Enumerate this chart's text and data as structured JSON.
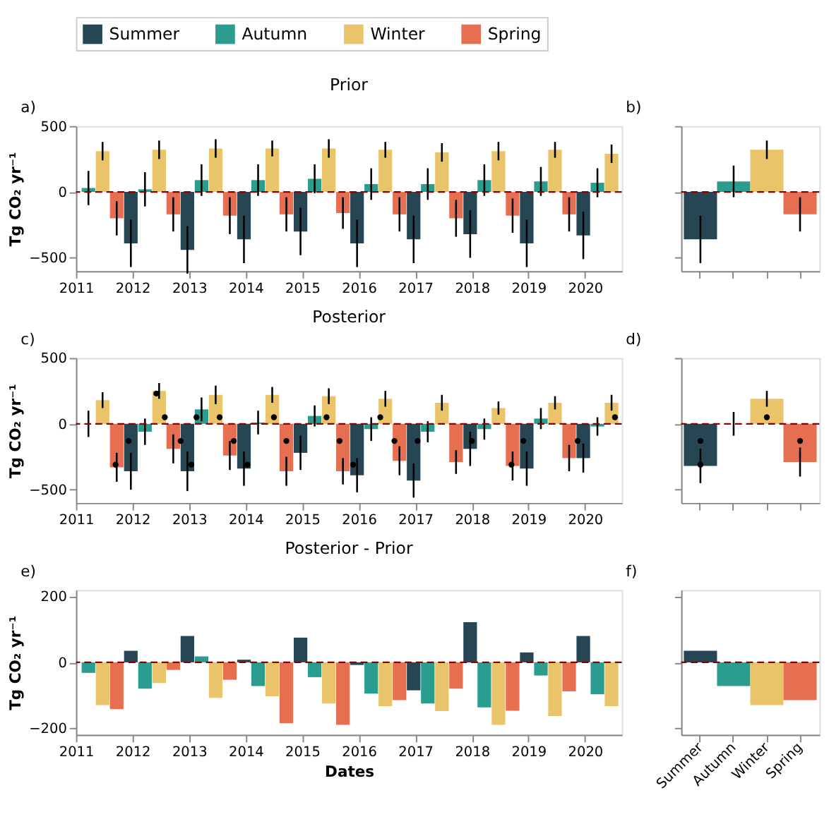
{
  "chart_data": [
    {
      "type": "bar",
      "title": "Prior",
      "ylabel": "Tg CO₂ yr⁻¹",
      "annotations": [
        "a)"
      ],
      "legend": "top",
      "xlim": [
        2011,
        2020.65
      ],
      "xticks": [
        2011,
        2012,
        2013,
        2014,
        2015,
        2016,
        2017,
        2018,
        2019,
        2020
      ],
      "ylim": [
        -600,
        500
      ],
      "yticks": [
        -500,
        0,
        500
      ],
      "ref_lines": [
        {
          "axis": "y",
          "value": 0,
          "color": "#8b0000",
          "line_style": "dashed"
        }
      ],
      "series": [
        {
          "name": "Summer",
          "color": "#264653",
          "x": [
            2011.97,
            2012.97,
            2013.97,
            2014.97,
            2015.97,
            2016.97,
            2017.97,
            2018.97,
            2019.97
          ],
          "values": [
            -390,
            -440,
            -360,
            -300,
            -390,
            -360,
            -320,
            -390,
            -330
          ],
          "errors": [
            180,
            180,
            180,
            180,
            180,
            180,
            180,
            180,
            180
          ]
        },
        {
          "name": "Autumn",
          "color": "#2a9d8f",
          "x": [
            2011.22,
            2012.22,
            2013.22,
            2014.22,
            2015.22,
            2016.22,
            2017.22,
            2018.22,
            2019.22,
            2020.22
          ],
          "values": [
            30,
            20,
            90,
            90,
            100,
            60,
            60,
            90,
            80,
            70
          ],
          "errors": [
            130,
            130,
            120,
            120,
            110,
            120,
            120,
            120,
            110,
            110
          ]
        },
        {
          "name": "Winter",
          "color": "#e9c46a",
          "x": [
            2011.47,
            2012.47,
            2013.47,
            2014.47,
            2015.47,
            2016.47,
            2017.47,
            2018.47,
            2019.47,
            2020.47
          ],
          "values": [
            310,
            320,
            330,
            330,
            330,
            320,
            300,
            310,
            320,
            290
          ],
          "errors": [
            70,
            70,
            70,
            60,
            70,
            60,
            70,
            70,
            60,
            70
          ]
        },
        {
          "name": "Spring",
          "color": "#e76f51",
          "x": [
            2011.72,
            2012.72,
            2013.72,
            2014.72,
            2015.72,
            2016.72,
            2017.72,
            2018.72,
            2019.72
          ],
          "values": [
            -200,
            -170,
            -180,
            -170,
            -160,
            -170,
            -200,
            -180,
            -170
          ],
          "errors": [
            130,
            130,
            140,
            130,
            120,
            130,
            140,
            130,
            130
          ]
        }
      ]
    },
    {
      "type": "bar",
      "annotations": [
        "b)"
      ],
      "tick_labels": false,
      "categories": [
        "Summer",
        "Autumn",
        "Winter",
        "Spring"
      ],
      "values": [
        -360,
        80,
        320,
        -170
      ],
      "colors": [
        "#264653",
        "#2a9d8f",
        "#e9c46a",
        "#e76f51"
      ],
      "errors": [
        180,
        120,
        70,
        130
      ],
      "ylim": [
        -600,
        500
      ],
      "yticks": [
        -500,
        0,
        500
      ],
      "ref_lines": [
        {
          "axis": "y",
          "value": 0,
          "color": "#8b0000",
          "line_style": "dashed"
        }
      ]
    },
    {
      "type": "bar",
      "title": "Posterior",
      "ylabel": "Tg CO₂ yr⁻¹",
      "annotations": [
        "c)"
      ],
      "xlim": [
        2011,
        2020.65
      ],
      "xticks": [
        2011,
        2012,
        2013,
        2014,
        2015,
        2016,
        2017,
        2018,
        2019,
        2020
      ],
      "ylim": [
        -600,
        500
      ],
      "yticks": [
        -500,
        0,
        500
      ],
      "ref_lines": [
        {
          "axis": "y",
          "value": 0,
          "color": "#8b0000",
          "line_style": "dashed"
        }
      ],
      "series": [
        {
          "color": "#264653",
          "x": [
            2011.97,
            2012.97,
            2013.97,
            2014.97,
            2015.97,
            2016.97,
            2017.97,
            2018.97,
            2019.97
          ],
          "values": [
            -360,
            -360,
            -340,
            -220,
            -390,
            -430,
            -190,
            -340,
            -260
          ],
          "errors": [
            140,
            150,
            130,
            130,
            130,
            130,
            130,
            130,
            110
          ]
        },
        {
          "color": "#2a9d8f",
          "x": [
            2011.22,
            2012.22,
            2013.22,
            2014.22,
            2015.22,
            2016.22,
            2017.22,
            2018.22,
            2019.22,
            2020.22
          ],
          "values": [
            0,
            -60,
            110,
            10,
            60,
            -40,
            -60,
            -40,
            40,
            -20
          ],
          "errors": [
            100,
            100,
            90,
            90,
            80,
            90,
            80,
            80,
            80,
            70
          ]
        },
        {
          "color": "#e9c46a",
          "x": [
            2011.47,
            2012.47,
            2013.47,
            2014.47,
            2015.47,
            2016.47,
            2017.47,
            2018.47,
            2019.47,
            2020.47
          ],
          "values": [
            180,
            250,
            220,
            220,
            210,
            190,
            160,
            120,
            160,
            160
          ],
          "errors": [
            60,
            60,
            70,
            60,
            60,
            60,
            60,
            50,
            50,
            60
          ]
        },
        {
          "color": "#e76f51",
          "x": [
            2011.72,
            2012.72,
            2013.72,
            2014.72,
            2015.72,
            2016.72,
            2017.72,
            2018.72,
            2019.72
          ],
          "values": [
            -330,
            -190,
            -240,
            -360,
            -360,
            -280,
            -290,
            -320,
            -260
          ],
          "errors": [
            110,
            110,
            110,
            110,
            100,
            110,
            90,
            110,
            100
          ]
        },
        {
          "type": "scatter",
          "color": "#000000",
          "x": [
            2011.7,
            2011.93,
            2012.42,
            2012.57,
            2012.85,
            2013.04,
            2013.13,
            2013.54,
            2013.79,
            2014.03,
            2014.5,
            2014.72,
            2015.43,
            2015.66,
            2015.9,
            2016.38,
            2016.63,
            2017.04,
            2018.0,
            2018.7,
            2018.91,
            2019.87,
            2020.53
          ],
          "values": [
            -310,
            -130,
            230,
            50,
            -130,
            -310,
            50,
            50,
            -130,
            -310,
            50,
            -130,
            50,
            -130,
            -310,
            50,
            -130,
            -130,
            -130,
            -310,
            -130,
            -130,
            50
          ]
        }
      ]
    },
    {
      "type": "bar",
      "annotations": [
        "d)"
      ],
      "tick_labels": false,
      "categories": [
        "Summer",
        "Autumn",
        "Winter",
        "Spring"
      ],
      "values": [
        -320,
        0,
        190,
        -290
      ],
      "colors": [
        "#264653",
        "#2a9d8f",
        "#e9c46a",
        "#e76f51"
      ],
      "errors": [
        130,
        90,
        60,
        110
      ],
      "ylim": [
        -600,
        500
      ],
      "yticks": [
        -500,
        0,
        500
      ],
      "ref_lines": [
        {
          "axis": "y",
          "value": 0,
          "color": "#8b0000",
          "line_style": "dashed"
        }
      ],
      "series": [
        {
          "type": "scatter",
          "color": "#000000",
          "x": [
            "Summer",
            "Summer",
            "Winter",
            "Spring"
          ],
          "values": [
            -130,
            -310,
            50,
            -130
          ]
        }
      ]
    },
    {
      "type": "bar",
      "title": "Posterior - Prior",
      "xlabel": "Dates",
      "ylabel": "Tg CO₂ yr⁻¹",
      "annotations": [
        "e)"
      ],
      "xlim": [
        2011,
        2020.65
      ],
      "xticks": [
        2011,
        2012,
        2013,
        2014,
        2015,
        2016,
        2017,
        2018,
        2019,
        2020
      ],
      "ylim": [
        -220,
        220
      ],
      "yticks": [
        -200,
        0,
        200
      ],
      "ref_lines": [
        {
          "axis": "y",
          "value": 0,
          "color": "#8b0000",
          "line_style": "dashed"
        }
      ],
      "series": [
        {
          "color": "#264653",
          "x": [
            2011.97,
            2012.97,
            2013.97,
            2014.97,
            2015.97,
            2016.97,
            2017.97,
            2018.97,
            2019.97
          ],
          "values": [
            35,
            80,
            8,
            75,
            -8,
            -85,
            122,
            30,
            80
          ]
        },
        {
          "color": "#2a9d8f",
          "x": [
            2011.22,
            2012.22,
            2013.22,
            2014.22,
            2015.22,
            2016.22,
            2017.22,
            2018.22,
            2019.22,
            2020.22
          ],
          "values": [
            -32,
            -80,
            18,
            -72,
            -45,
            -95,
            -125,
            -137,
            -40,
            -97
          ]
        },
        {
          "color": "#e9c46a",
          "x": [
            2011.47,
            2012.47,
            2013.47,
            2014.47,
            2015.47,
            2016.47,
            2017.47,
            2018.47,
            2019.47,
            2020.47
          ],
          "values": [
            -130,
            -63,
            -108,
            -103,
            -125,
            -133,
            -148,
            -190,
            -163,
            -133
          ]
        },
        {
          "color": "#e76f51",
          "x": [
            2011.72,
            2012.72,
            2013.72,
            2014.72,
            2015.72,
            2016.72,
            2017.72,
            2018.72,
            2019.72
          ],
          "values": [
            -142,
            -23,
            -53,
            -185,
            -190,
            -115,
            -80,
            -147,
            -88
          ]
        }
      ]
    },
    {
      "type": "bar",
      "annotations": [
        "f)"
      ],
      "tick_labels": "x",
      "categories": [
        "Summer",
        "Autumn",
        "Winter",
        "Spring"
      ],
      "values": [
        35,
        -72,
        -130,
        -115
      ],
      "colors": [
        "#264653",
        "#2a9d8f",
        "#e9c46a",
        "#e76f51"
      ],
      "ylim": [
        -220,
        220
      ],
      "yticks": [
        -200,
        0,
        200
      ],
      "ref_lines": [
        {
          "axis": "y",
          "value": 0,
          "color": "#8b0000",
          "line_style": "dashed"
        }
      ]
    }
  ]
}
